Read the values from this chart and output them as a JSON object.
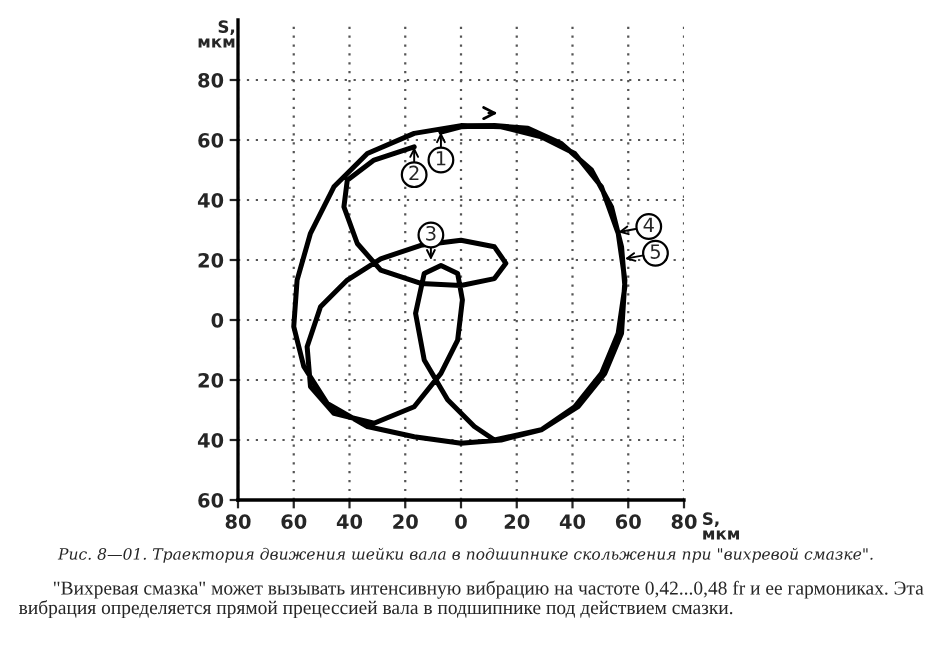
{
  "chart_data": {
    "type": "line",
    "xlabel": "S,\nмкм",
    "ylabel": "S,\nмкм",
    "xlim": [
      -80,
      80
    ],
    "ylim": [
      -60,
      100
    ],
    "xticks": [
      {
        "value": -80,
        "label": "80"
      },
      {
        "value": -60,
        "label": "60"
      },
      {
        "value": -40,
        "label": "40"
      },
      {
        "value": -20,
        "label": "20"
      },
      0,
      20,
      40,
      60,
      80
    ],
    "yticks": [
      {
        "value": -60,
        "label": "60"
      },
      {
        "value": -40,
        "label": "40"
      },
      {
        "value": -20,
        "label": "20"
      },
      0,
      20,
      40,
      60,
      80
    ],
    "grid": true,
    "line_style": "solid",
    "marker": "none",
    "series": [
      {
        "color": "#000000",
        "x": [
          -7.2,
          0,
          12,
          24,
          36,
          46.8,
          54,
          57.6,
          58.8,
          56.4,
          50.4,
          40.8,
          28.8,
          14.4,
          0,
          -16.8,
          -33.6,
          -48,
          -56.4,
          -60,
          -58.8,
          -54,
          -45.6,
          -33.6,
          -16.8,
          0,
          14.4,
          28.8,
          40.8,
          50.4,
          56.4,
          58.8,
          57.6,
          51.6,
          42,
          28.8,
          12,
          4.8,
          -4.8,
          -13.2,
          -16.3,
          -13.2,
          -7.2,
          -1.2,
          0.5,
          -1.2,
          -7.2,
          -16.8,
          -31.2,
          -45.6,
          -54,
          -55.2,
          -50.4,
          -40.8,
          -28.8,
          -14.4,
          0,
          12,
          16.1,
          12,
          0,
          -14.4,
          -28.8,
          -37.2,
          -42,
          -40.8,
          -31.2,
          -16.8
        ],
        "values": [
          62.6,
          64.4,
          64.8,
          63.9,
          58.8,
          50,
          37.7,
          24.4,
          11.1,
          -4.4,
          -17.8,
          -28.9,
          -36.6,
          -40,
          -41.1,
          -38.9,
          -35.5,
          -27.8,
          -15.5,
          -2.2,
          13.3,
          28.9,
          44.4,
          55.5,
          62.2,
          64.8,
          64.4,
          61.1,
          55.5,
          44.4,
          28.9,
          13.3,
          -4.4,
          -17.8,
          -28.9,
          -36.6,
          -40,
          -35.5,
          -26.6,
          -13.3,
          2.2,
          15.5,
          18.2,
          15.5,
          6.7,
          -6.7,
          -17.8,
          -28.9,
          -34.4,
          -31.1,
          -22.2,
          -8.9,
          4.4,
          13.3,
          20.4,
          24.9,
          26.6,
          24.4,
          18.9,
          13.8,
          11.5,
          12.2,
          16.6,
          25.5,
          37.7,
          46.6,
          53.3,
          57.7
        ]
      }
    ],
    "annotations": [
      {
        "text": "1",
        "x": -7.2,
        "y": 62.6
      },
      {
        "text": "2",
        "x": -16.8,
        "y": 57.7
      },
      {
        "text": "3",
        "x": -10.8,
        "y": 20
      },
      {
        "text": "4",
        "x": 56.4,
        "y": 29.3
      },
      {
        "text": "5",
        "x": 58.8,
        "y": 20.4
      },
      "Рис. 8—01. Траектория движения шейки вала в подшипнике скольжения при \"вихревой смазке\".",
      "       \"Вихревая смазка\" может вызывать интенсивную вибрацию на частоте 0,42...0,48 fr и ее гармониках. Эта вибрация определяется прямой прецессией вала в подшипнике под действием смазки."
    ]
  }
}
